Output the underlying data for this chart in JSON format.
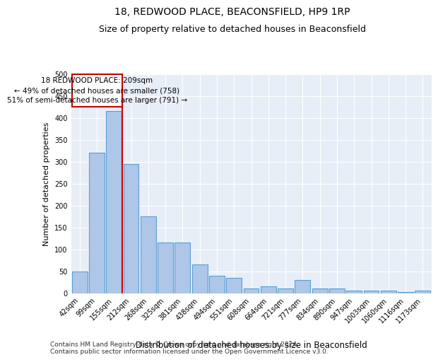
{
  "title": "18, REDWOOD PLACE, BEACONSFIELD, HP9 1RP",
  "subtitle": "Size of property relative to detached houses in Beaconsfield",
  "xlabel": "Distribution of detached houses by size in Beaconsfield",
  "ylabel": "Number of detached properties",
  "categories": [
    "42sqm",
    "99sqm",
    "155sqm",
    "212sqm",
    "268sqm",
    "325sqm",
    "381sqm",
    "438sqm",
    "494sqm",
    "551sqm",
    "608sqm",
    "664sqm",
    "721sqm",
    "777sqm",
    "834sqm",
    "890sqm",
    "947sqm",
    "1003sqm",
    "1060sqm",
    "1116sqm",
    "1173sqm"
  ],
  "values": [
    50,
    320,
    415,
    295,
    175,
    115,
    115,
    65,
    40,
    35,
    10,
    15,
    10,
    30,
    10,
    10,
    5,
    5,
    5,
    2,
    5
  ],
  "bar_color": "#aec6e8",
  "bar_edge_color": "#5a9fd4",
  "vline_color": "#cc0000",
  "annotation_text_line1": "18 REDWOOD PLACE: 209sqm",
  "annotation_text_line2": "← 49% of detached houses are smaller (758)",
  "annotation_text_line3": "51% of semi-detached houses are larger (791) →",
  "annotation_box_color": "#cc0000",
  "ylim": [
    0,
    500
  ],
  "yticks": [
    0,
    50,
    100,
    150,
    200,
    250,
    300,
    350,
    400,
    450,
    500
  ],
  "bg_color": "#e8eef7",
  "footer": "Contains HM Land Registry data © Crown copyright and database right 2024.\nContains public sector information licensed under the Open Government Licence v3.0.",
  "title_fontsize": 10,
  "subtitle_fontsize": 9,
  "xlabel_fontsize": 8.5,
  "ylabel_fontsize": 8,
  "tick_fontsize": 7,
  "footer_fontsize": 6.5,
  "ann_fontsize": 7.5
}
